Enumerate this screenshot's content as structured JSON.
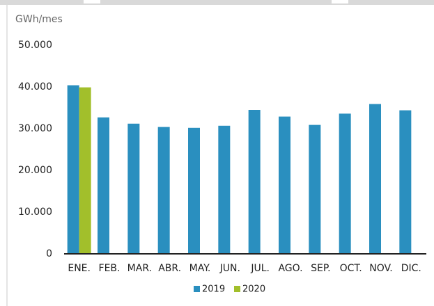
{
  "chart_data": {
    "type": "bar",
    "y_axis_label": "GWh/mes",
    "categories": [
      "ENE.",
      "FEB.",
      "MAR.",
      "ABR.",
      "MAY.",
      "JUN.",
      "JUL.",
      "AGO.",
      "SEP.",
      "OCT.",
      "NOV.",
      "DIC."
    ],
    "series": [
      {
        "name": "2019",
        "color": "#2a8fbf",
        "values": [
          40400,
          32700,
          31200,
          30400,
          30200,
          30700,
          34500,
          32900,
          30900,
          33600,
          35900,
          34400
        ]
      },
      {
        "name": "2020",
        "color": "#a2bf2b",
        "values": [
          39900,
          null,
          null,
          null,
          null,
          null,
          null,
          null,
          null,
          null,
          null,
          null
        ]
      }
    ],
    "ylim": [
      0,
      50000
    ],
    "yticks": [
      0,
      {
        "value": 10000,
        "label": "10.000"
      },
      {
        "value": 20000,
        "label": "20.000"
      },
      {
        "value": 30000,
        "label": "30.000"
      },
      {
        "value": 40000,
        "label": "40.000"
      },
      {
        "value": 50000,
        "label": "50.000"
      }
    ],
    "legend": "bottom"
  }
}
